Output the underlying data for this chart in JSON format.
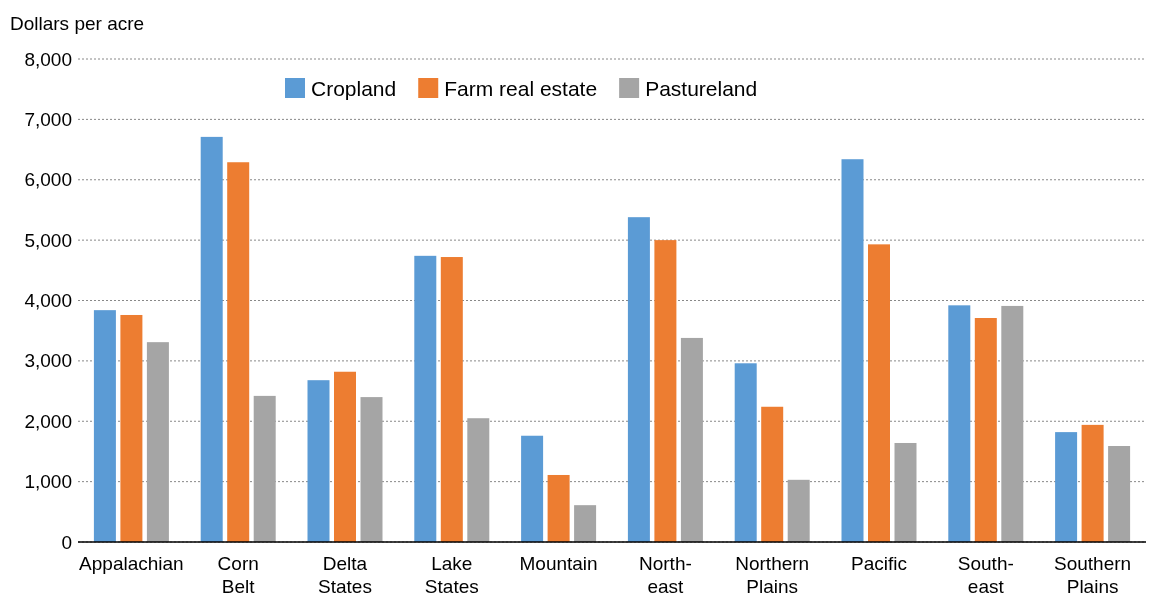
{
  "chart_data": {
    "type": "bar",
    "ylabel": "Dollars per acre",
    "categories": [
      "Appalachian",
      "Corn\nBelt",
      "Delta\nStates",
      "Lake\nStates",
      "Mountain",
      "North-\neast",
      "Northern\nPlains",
      "Pacific",
      "South-\neast",
      "Southern\nPlains"
    ],
    "series": [
      {
        "name": "Cropland",
        "color": "#5b9bd5",
        "values": [
          3840,
          6710,
          2680,
          4740,
          1760,
          5380,
          2960,
          6340,
          3920,
          1820
        ]
      },
      {
        "name": "Farm real estate",
        "color": "#ed7d31",
        "values": [
          3760,
          6290,
          2820,
          4720,
          1110,
          5000,
          2240,
          4930,
          3710,
          1940
        ]
      },
      {
        "name": "Pastureland",
        "color": "#a5a5a5",
        "values": [
          3310,
          2420,
          2400,
          2050,
          610,
          3380,
          1030,
          1640,
          3910,
          1590
        ]
      }
    ],
    "ylim": [
      0,
      8000
    ],
    "yticks": [
      {
        "value": 0,
        "label": "0"
      },
      {
        "value": 1000,
        "label": "1,000"
      },
      {
        "value": 2000,
        "label": "2,000"
      },
      {
        "value": 3000,
        "label": "3,000"
      },
      {
        "value": 4000,
        "label": "4,000"
      },
      {
        "value": 5000,
        "label": "5,000"
      },
      {
        "value": 6000,
        "label": "6,000"
      },
      {
        "value": 7000,
        "label": "7,000"
      },
      {
        "value": 8000,
        "label": "8,000"
      }
    ],
    "grid": "y",
    "legend": "top"
  }
}
